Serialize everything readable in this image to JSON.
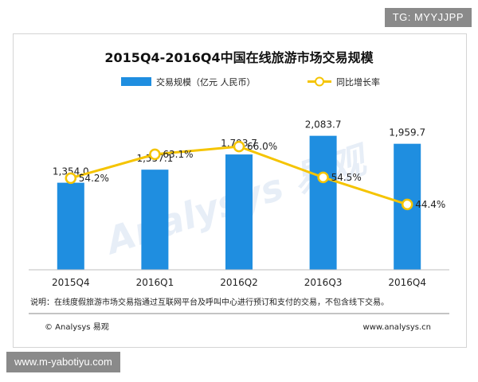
{
  "corner_tag": "TG: MYYJJPP",
  "url_tag": "www.m-yabotiyu.com",
  "chart_data": {
    "type": "bar",
    "title": "2015Q4-2016Q4中国在线旅游市场交易规模",
    "categories": [
      "2015Q4",
      "2016Q1",
      "2016Q2",
      "2016Q3",
      "2016Q4"
    ],
    "series": [
      {
        "name": "交易规模（亿元 人民币）",
        "type": "bar",
        "values": [
          1354.0,
          1557.1,
          1793.7,
          2083.7,
          1959.7
        ],
        "labels": [
          "1,354.0",
          "1,557.1",
          "1,793.7",
          "2,083.7",
          "1,959.7"
        ],
        "color": "#1f8ee0"
      },
      {
        "name": "同比增长率",
        "type": "line",
        "values": [
          54.2,
          63.1,
          66.0,
          54.5,
          44.4
        ],
        "labels": [
          "54.2%",
          "63.1%",
          "66.0%",
          "54.5%",
          "44.4%"
        ],
        "color": "#f5c400"
      }
    ],
    "bar_ylim": [
      0,
      2500
    ],
    "line_ylim": [
      20,
      80
    ],
    "note": "说明：在线度假旅游市场交易指通过互联网平台及呼叫中心进行预订和支付的交易，不包含线下交易。",
    "watermark": "Analysys 易观",
    "footer_left": "© Analysys 易观",
    "footer_right": "www.analysys.cn"
  }
}
